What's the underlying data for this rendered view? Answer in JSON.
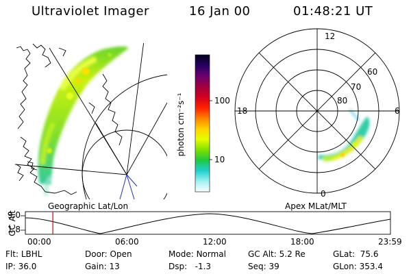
{
  "header": {
    "instrument": "Ultraviolet Imager",
    "date": "16 Jan 00",
    "time": "01:48:21 UT"
  },
  "colorbar": {
    "label": "photon cm⁻²s⁻¹",
    "ticks": [
      "100",
      "10"
    ],
    "stops": [
      "#000020",
      "#2a0060",
      "#6a0070",
      "#a00040",
      "#d00020",
      "#ff2000",
      "#ff8000",
      "#ffd000",
      "#e8ff00",
      "#80e000",
      "#20c840",
      "#20d0d0",
      "#a0f0f0",
      "#ffffff"
    ]
  },
  "left_panel": {
    "caption": "Geographic Lat/Lon"
  },
  "right_panel": {
    "caption": "Apex MLat/MLT",
    "lat_labels": [
      "80",
      "70",
      "60"
    ],
    "mlt_labels": {
      "top": "12",
      "bottom": "0",
      "left": "18",
      "right": "6"
    }
  },
  "timeline": {
    "axis_label": "GC Alt",
    "y_ticks": [
      "9.0",
      "1.8"
    ],
    "x_ticks": [
      "00:00",
      "06:00",
      "12:00",
      "18:00",
      "23:59"
    ],
    "current_time_fraction": 0.0753
  },
  "status": {
    "filter_label": "Flt:",
    "filter_value": "LBHL",
    "ip_label": "IP:",
    "ip_value": "36.0",
    "door_label": "Door:",
    "door_value": "Open",
    "gain_label": "Gain:",
    "gain_value": "13",
    "mode_label": "Mode:",
    "mode_value": "Normal",
    "dsp_label": "Dsp:",
    "dsp_value": "-1.3",
    "gcalt_label": "GC Alt:",
    "gcalt_value": "5.2 Re",
    "seq_label": "Seq:",
    "seq_value": "39",
    "glat_label": "GLat:",
    "glat_value": "75.6",
    "glon_label": "GLon:",
    "glon_value": "353.4"
  }
}
